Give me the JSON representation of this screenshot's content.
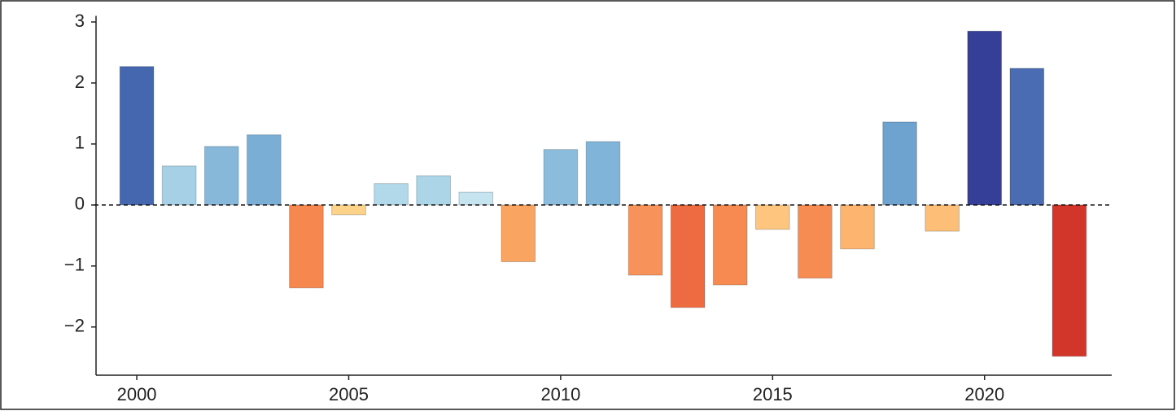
{
  "chart_data": {
    "type": "bar",
    "x": [
      2000,
      2001,
      2002,
      2003,
      2004,
      2005,
      2006,
      2007,
      2008,
      2009,
      2010,
      2011,
      2012,
      2013,
      2014,
      2015,
      2016,
      2017,
      2018,
      2019,
      2020,
      2021,
      2022
    ],
    "values": [
      2.27,
      0.64,
      0.96,
      1.15,
      -1.36,
      -0.16,
      0.35,
      0.48,
      0.21,
      -0.93,
      0.91,
      1.04,
      -1.15,
      -1.68,
      -1.31,
      -0.4,
      -1.2,
      -0.72,
      1.36,
      -0.43,
      2.85,
      2.24,
      -2.48
    ],
    "colors": [
      "#4467b0",
      "#a6d0e6",
      "#87b8da",
      "#7aaed5",
      "#f6874e",
      "#fdd38a",
      "#b2d9ea",
      "#acd5e8",
      "#c6e4f0",
      "#f9a460",
      "#8cbcdc",
      "#80b5d9",
      "#f7935a",
      "#ee6a40",
      "#f68a50",
      "#fdc57e",
      "#f78c52",
      "#fdb46e",
      "#6ea2cf",
      "#fdbf78",
      "#353f98",
      "#4a6cb3",
      "#d2352a"
    ],
    "xlim": [
      1999,
      2023
    ],
    "xticks": [
      2000,
      2005,
      2010,
      2015,
      2020
    ],
    "ylim": [
      -2.75,
      3.1
    ],
    "yticks": [
      {
        "value": -2,
        "label": "−2"
      },
      {
        "value": -1,
        "label": "−1"
      },
      0,
      1,
      2,
      3
    ],
    "zero_line": true
  }
}
